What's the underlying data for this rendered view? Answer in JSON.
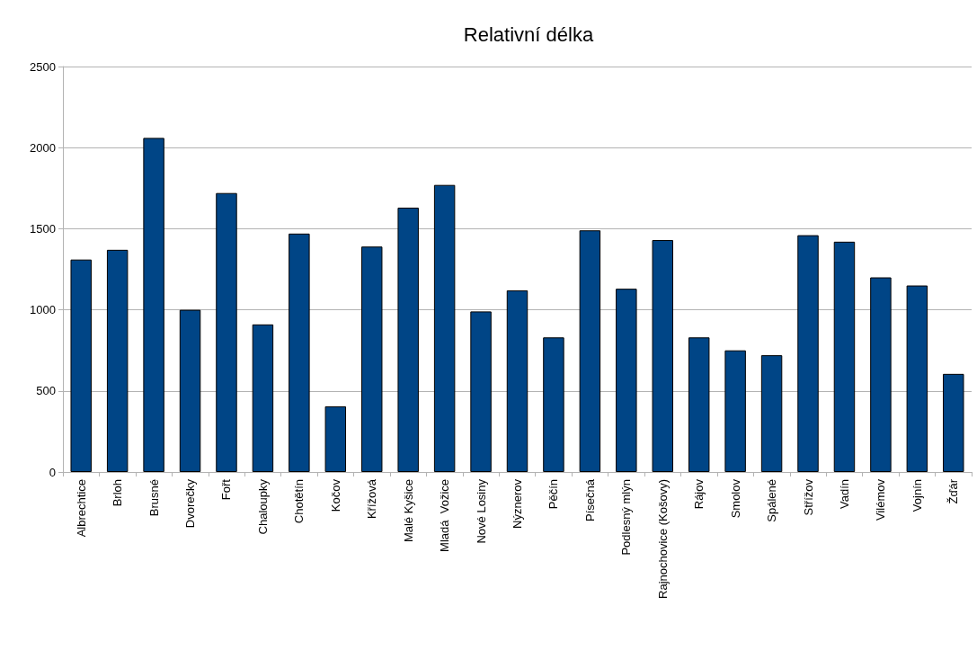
{
  "chart_data": {
    "type": "bar",
    "title": "Relativní délka",
    "categories": [
      "Albrechtice",
      "Brloh",
      "Brusné",
      "Dvorečky",
      "Fořt",
      "Chaloupky",
      "Chotětín",
      "Kočov",
      "Křížová",
      "Malé Kyšice",
      "Mladá  Vožice",
      "Nové Losiny",
      "Nýznerov",
      "Pěčín",
      "Písečná",
      "Podlesný mlýn",
      "Rajnochovice (Košovy)",
      "Rájov",
      "Smolov",
      "Spálené",
      "Střížov",
      "Vadín",
      "Vilémov",
      "Vojnín",
      "Žďár"
    ],
    "values": [
      1310,
      1370,
      2060,
      1000,
      1720,
      910,
      1470,
      405,
      1390,
      1630,
      1770,
      990,
      1120,
      830,
      1490,
      1130,
      1430,
      830,
      750,
      720,
      1460,
      1420,
      1200,
      1150,
      605
    ],
    "color": "#004586",
    "ylim": [
      0,
      2500
    ],
    "yticks": [
      0,
      500,
      1000,
      1500,
      2000,
      2500
    ],
    "grid": "y"
  }
}
